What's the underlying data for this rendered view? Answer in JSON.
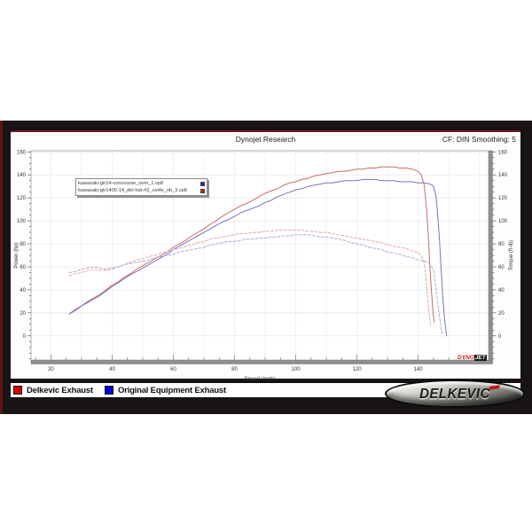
{
  "header": {
    "title": "Dynojet Research",
    "smoothing": "CF: DIN Smoothing: 5"
  },
  "file_legend": {
    "rows": [
      {
        "label": "kawasaki-gtr14-concourse_oem_1.vp8",
        "color": "#2222bb"
      },
      {
        "label": "kawasaki-gtr1400-14_del-hdr-#2_ovl4s_nb_3.vp8",
        "color": "#bb2222"
      }
    ]
  },
  "bottom_legend": [
    {
      "label": "Delkevic Exhaust",
      "color": "#d90000"
    },
    {
      "label": "Original Equipment Exhaust",
      "color": "#0000d9"
    }
  ],
  "brand": {
    "delkevic": "DELKEVIC",
    "dynojet_prefix": "DYNO",
    "dynojet_suffix": "JET"
  },
  "chart_data": {
    "type": "line",
    "title": "Dynojet Research",
    "xlabel": "Speed (mph)",
    "ylabel_left": "Power (hp)",
    "ylabel_right": "Torque (ft-lb)",
    "x_range": [
      13.5,
      163
    ],
    "y_range": [
      -21,
      161
    ],
    "x_ticks": [
      20,
      40,
      60,
      80,
      100,
      120,
      140
    ],
    "y_ticks": [
      0,
      20,
      40,
      60,
      80,
      100,
      120,
      140,
      160
    ],
    "minor_step": 5,
    "grid": {
      "vertical_step_mph": 10,
      "horizontal_step": 20
    },
    "legend_position": "top-left-box",
    "series": [
      {
        "name": "Delkevic Exhaust Power (hp)",
        "color": "#c76d68",
        "dash": null,
        "points": [
          [
            26,
            19
          ],
          [
            28,
            23
          ],
          [
            30,
            26
          ],
          [
            32,
            30
          ],
          [
            34,
            33
          ],
          [
            36,
            36
          ],
          [
            38,
            40
          ],
          [
            40,
            44
          ],
          [
            42,
            47
          ],
          [
            44,
            51
          ],
          [
            46,
            54
          ],
          [
            48,
            58
          ],
          [
            50,
            61
          ],
          [
            52,
            64
          ],
          [
            54,
            67
          ],
          [
            56,
            70
          ],
          [
            58,
            73
          ],
          [
            60,
            77
          ],
          [
            62,
            80
          ],
          [
            64,
            83
          ],
          [
            66,
            87
          ],
          [
            68,
            90
          ],
          [
            70,
            93
          ],
          [
            72,
            97
          ],
          [
            74,
            100
          ],
          [
            76,
            104
          ],
          [
            78,
            107
          ],
          [
            80,
            110
          ],
          [
            82,
            113
          ],
          [
            84,
            115
          ],
          [
            86,
            118
          ],
          [
            88,
            121
          ],
          [
            90,
            124
          ],
          [
            92,
            126
          ],
          [
            94,
            128
          ],
          [
            96,
            131
          ],
          [
            98,
            133
          ],
          [
            100,
            134
          ],
          [
            102,
            136
          ],
          [
            104,
            137
          ],
          [
            106,
            139
          ],
          [
            108,
            140
          ],
          [
            110,
            141
          ],
          [
            112,
            142
          ],
          [
            114,
            143
          ],
          [
            116,
            143
          ],
          [
            118,
            144
          ],
          [
            120,
            145
          ],
          [
            122,
            145
          ],
          [
            124,
            146
          ],
          [
            126,
            146
          ],
          [
            128,
            147
          ],
          [
            130,
            147
          ],
          [
            132,
            147
          ],
          [
            134,
            146
          ],
          [
            136,
            146
          ],
          [
            138,
            145
          ],
          [
            140,
            143
          ],
          [
            141,
            140
          ],
          [
            142,
            131
          ],
          [
            142.7,
            112
          ],
          [
            143.3,
            88
          ],
          [
            143.8,
            62
          ],
          [
            144.3,
            40
          ],
          [
            144.8,
            22
          ],
          [
            145.2,
            12
          ]
        ]
      },
      {
        "name": "Original Equipment Power (hp)",
        "color": "#7674c0",
        "dash": null,
        "points": [
          [
            26,
            19
          ],
          [
            28,
            22
          ],
          [
            30,
            26
          ],
          [
            32,
            29
          ],
          [
            34,
            32
          ],
          [
            36,
            35
          ],
          [
            38,
            39
          ],
          [
            40,
            43
          ],
          [
            42,
            46
          ],
          [
            44,
            50
          ],
          [
            46,
            53
          ],
          [
            48,
            56
          ],
          [
            50,
            59
          ],
          [
            52,
            62
          ],
          [
            54,
            65
          ],
          [
            56,
            68
          ],
          [
            58,
            71
          ],
          [
            60,
            75
          ],
          [
            62,
            78
          ],
          [
            64,
            81
          ],
          [
            66,
            84
          ],
          [
            68,
            87
          ],
          [
            70,
            90
          ],
          [
            72,
            93
          ],
          [
            74,
            96
          ],
          [
            76,
            99
          ],
          [
            78,
            101
          ],
          [
            80,
            104
          ],
          [
            82,
            107
          ],
          [
            84,
            109
          ],
          [
            86,
            111
          ],
          [
            88,
            113
          ],
          [
            90,
            116
          ],
          [
            92,
            118
          ],
          [
            94,
            121
          ],
          [
            96,
            123
          ],
          [
            98,
            125
          ],
          [
            100,
            127
          ],
          [
            102,
            128
          ],
          [
            104,
            130
          ],
          [
            106,
            131
          ],
          [
            108,
            132
          ],
          [
            110,
            133
          ],
          [
            112,
            133
          ],
          [
            114,
            134
          ],
          [
            116,
            135
          ],
          [
            118,
            135
          ],
          [
            120,
            135
          ],
          [
            122,
            136
          ],
          [
            124,
            136
          ],
          [
            126,
            136
          ],
          [
            128,
            135
          ],
          [
            130,
            135
          ],
          [
            132,
            135
          ],
          [
            134,
            134
          ],
          [
            136,
            134
          ],
          [
            138,
            134
          ],
          [
            140,
            133
          ],
          [
            142,
            133
          ],
          [
            144,
            132
          ],
          [
            145,
            130
          ],
          [
            145.8,
            122
          ],
          [
            146.4,
            105
          ],
          [
            147,
            82
          ],
          [
            147.5,
            58
          ],
          [
            148,
            36
          ],
          [
            148.5,
            18
          ],
          [
            149,
            6
          ],
          [
            149.3,
            0
          ]
        ]
      },
      {
        "name": "Delkevic Exhaust Torque (ft-lb)",
        "color": "#dcaba8",
        "dash": "3,2",
        "points": [
          [
            26,
            52
          ],
          [
            28,
            54
          ],
          [
            30,
            55
          ],
          [
            32,
            57
          ],
          [
            34,
            58
          ],
          [
            36,
            57
          ],
          [
            38,
            57
          ],
          [
            40,
            58
          ],
          [
            42,
            60
          ],
          [
            44,
            62
          ],
          [
            46,
            64
          ],
          [
            48,
            66
          ],
          [
            50,
            67
          ],
          [
            52,
            69
          ],
          [
            54,
            70
          ],
          [
            56,
            72
          ],
          [
            58,
            73
          ],
          [
            60,
            75
          ],
          [
            62,
            76
          ],
          [
            64,
            78
          ],
          [
            66,
            79
          ],
          [
            68,
            81
          ],
          [
            70,
            82
          ],
          [
            72,
            84
          ],
          [
            74,
            85
          ],
          [
            76,
            86
          ],
          [
            78,
            87
          ],
          [
            80,
            88
          ],
          [
            82,
            89
          ],
          [
            84,
            89
          ],
          [
            86,
            90
          ],
          [
            88,
            90
          ],
          [
            90,
            91
          ],
          [
            92,
            91
          ],
          [
            94,
            92
          ],
          [
            96,
            92
          ],
          [
            98,
            92
          ],
          [
            100,
            92
          ],
          [
            102,
            92
          ],
          [
            104,
            91
          ],
          [
            106,
            91
          ],
          [
            108,
            90
          ],
          [
            110,
            90
          ],
          [
            112,
            89
          ],
          [
            114,
            88
          ],
          [
            116,
            87
          ],
          [
            118,
            86
          ],
          [
            120,
            85
          ],
          [
            122,
            84
          ],
          [
            124,
            83
          ],
          [
            126,
            82
          ],
          [
            128,
            81
          ],
          [
            130,
            79
          ],
          [
            132,
            78
          ],
          [
            134,
            77
          ],
          [
            136,
            76
          ],
          [
            138,
            74
          ],
          [
            140,
            72
          ],
          [
            141,
            70
          ],
          [
            142,
            63
          ],
          [
            142.6,
            48
          ],
          [
            143.2,
            30
          ],
          [
            143.7,
            16
          ],
          [
            144.1,
            8
          ]
        ]
      },
      {
        "name": "Original Equipment Torque (ft-lb)",
        "color": "#abacd4",
        "dash": "3,2",
        "points": [
          [
            26,
            55
          ],
          [
            28,
            56
          ],
          [
            30,
            58
          ],
          [
            32,
            59
          ],
          [
            34,
            60
          ],
          [
            36,
            59
          ],
          [
            38,
            58
          ],
          [
            40,
            59
          ],
          [
            42,
            60
          ],
          [
            44,
            62
          ],
          [
            46,
            63
          ],
          [
            48,
            64
          ],
          [
            50,
            65
          ],
          [
            52,
            66
          ],
          [
            54,
            68
          ],
          [
            56,
            69
          ],
          [
            58,
            70
          ],
          [
            60,
            71
          ],
          [
            62,
            73
          ],
          [
            64,
            74
          ],
          [
            66,
            75
          ],
          [
            68,
            76
          ],
          [
            70,
            77
          ],
          [
            72,
            79
          ],
          [
            74,
            80
          ],
          [
            76,
            81
          ],
          [
            78,
            82
          ],
          [
            80,
            82
          ],
          [
            82,
            83
          ],
          [
            84,
            84
          ],
          [
            86,
            84
          ],
          [
            88,
            85
          ],
          [
            90,
            85
          ],
          [
            92,
            86
          ],
          [
            94,
            86
          ],
          [
            96,
            87
          ],
          [
            98,
            87
          ],
          [
            100,
            88
          ],
          [
            102,
            88
          ],
          [
            104,
            88
          ],
          [
            106,
            87
          ],
          [
            108,
            86
          ],
          [
            110,
            86
          ],
          [
            112,
            85
          ],
          [
            114,
            84
          ],
          [
            116,
            83
          ],
          [
            118,
            81
          ],
          [
            120,
            80
          ],
          [
            122,
            79
          ],
          [
            124,
            77
          ],
          [
            126,
            76
          ],
          [
            128,
            75
          ],
          [
            130,
            73
          ],
          [
            132,
            72
          ],
          [
            134,
            71
          ],
          [
            136,
            69
          ],
          [
            138,
            68
          ],
          [
            140,
            66
          ],
          [
            142,
            65
          ],
          [
            143,
            64
          ],
          [
            144,
            62
          ],
          [
            145,
            57
          ],
          [
            145.7,
            45
          ],
          [
            146.3,
            30
          ],
          [
            147,
            16
          ],
          [
            147.6,
            6
          ],
          [
            148,
            1
          ]
        ]
      }
    ]
  }
}
